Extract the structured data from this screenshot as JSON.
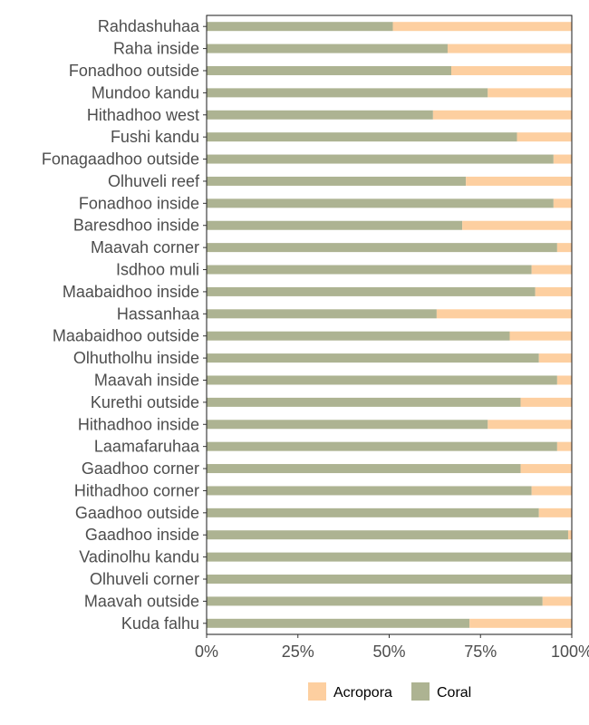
{
  "chart_data": {
    "type": "bar",
    "orientation": "horizontal",
    "stacked": true,
    "normalized": true,
    "categories": [
      "Rahdashuhaa",
      "Raha inside",
      "Fonadhoo outside",
      "Mundoo kandu",
      "Hithadhoo west",
      "Fushi kandu",
      "Fonagaadhoo outside",
      "Olhuveli reef",
      "Fonadhoo inside",
      "Baresdhoo inside",
      "Maavah corner",
      "Isdhoo muli",
      "Maabaidhoo inside",
      "Hassanhaa",
      "Maabaidhoo outside",
      "Olhutholhu inside",
      "Maavah inside",
      "Kurethi outside",
      "Hithadhoo inside",
      "Laamafaruhaa",
      "Gaadhoo corner",
      "Hithadhoo corner",
      "Gaadhoo outside",
      "Gaadhoo inside",
      "Vadinolhu kandu",
      "Olhuveli corner",
      "Maavah outside",
      "Kuda falhu"
    ],
    "series": [
      {
        "name": "Coral",
        "color": "#adb392",
        "values": [
          0.51,
          0.66,
          0.67,
          0.77,
          0.62,
          0.85,
          0.95,
          0.71,
          0.95,
          0.7,
          0.96,
          0.89,
          0.9,
          0.63,
          0.83,
          0.91,
          0.96,
          0.86,
          0.77,
          0.96,
          0.86,
          0.89,
          0.91,
          0.99,
          1.0,
          1.0,
          0.92,
          0.72
        ]
      },
      {
        "name": "Acropora",
        "color": "#fdcfa0",
        "values": [
          0.49,
          0.34,
          0.33,
          0.23,
          0.38,
          0.15,
          0.05,
          0.29,
          0.05,
          0.3,
          0.04,
          0.11,
          0.1,
          0.37,
          0.17,
          0.09,
          0.04,
          0.14,
          0.23,
          0.04,
          0.14,
          0.11,
          0.09,
          0.01,
          0.0,
          0.0,
          0.08,
          0.28
        ]
      }
    ],
    "x_ticks": [
      "0%",
      "25%",
      "50%",
      "75%",
      "100%"
    ],
    "xlim": [
      0,
      1
    ],
    "title": "",
    "xlabel": "",
    "ylabel": "",
    "grid": false,
    "legend": {
      "position": "bottom",
      "entries": [
        {
          "label": "Acropora",
          "color": "#fdcfa0"
        },
        {
          "label": "Coral",
          "color": "#adb392"
        }
      ]
    }
  }
}
